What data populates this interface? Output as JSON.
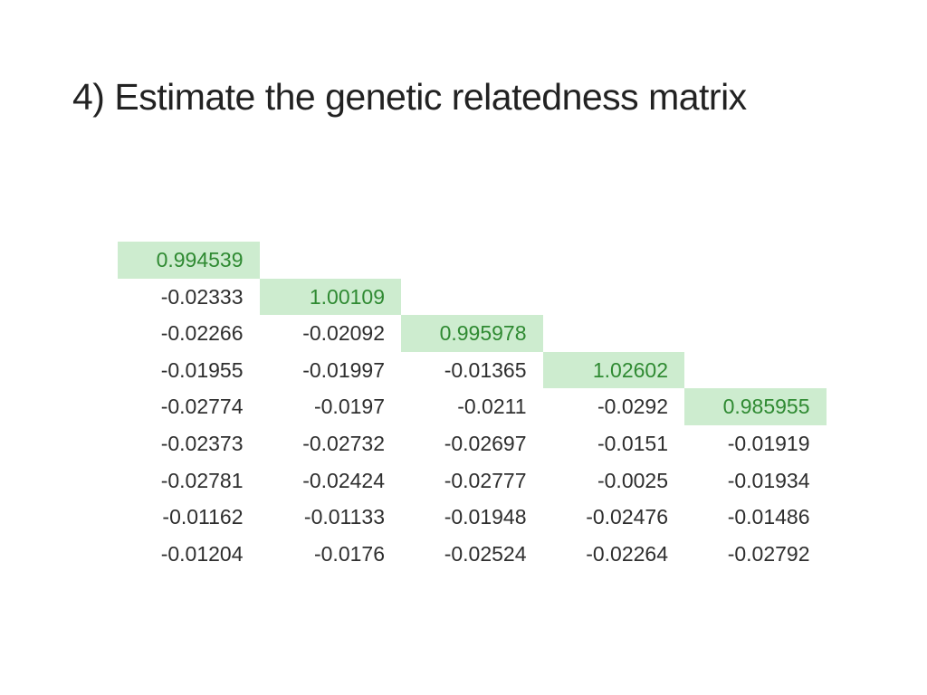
{
  "slide": {
    "title": "4) Estimate the genetic relatedness matrix"
  },
  "colors": {
    "diagonal_background": "#cdeccf",
    "diagonal_text": "#2f8a32",
    "text": "#2e2e2e"
  },
  "matrix": {
    "rows": [
      [
        "0.994539"
      ],
      [
        "-0.02333",
        "1.00109"
      ],
      [
        "-0.02266",
        "-0.02092",
        "0.995978"
      ],
      [
        "-0.01955",
        "-0.01997",
        "-0.01365",
        "1.02602"
      ],
      [
        "-0.02774",
        "-0.0197",
        "-0.0211",
        "-0.0292",
        "0.985955"
      ],
      [
        "-0.02373",
        "-0.02732",
        "-0.02697",
        "-0.0151",
        "-0.01919"
      ],
      [
        "-0.02781",
        "-0.02424",
        "-0.02777",
        "-0.0025",
        "-0.01934"
      ],
      [
        "-0.01162",
        "-0.01133",
        "-0.01948",
        "-0.02476",
        "-0.01486"
      ],
      [
        "-0.01204",
        "-0.0176",
        "-0.02524",
        "-0.02264",
        "-0.02792"
      ]
    ]
  }
}
